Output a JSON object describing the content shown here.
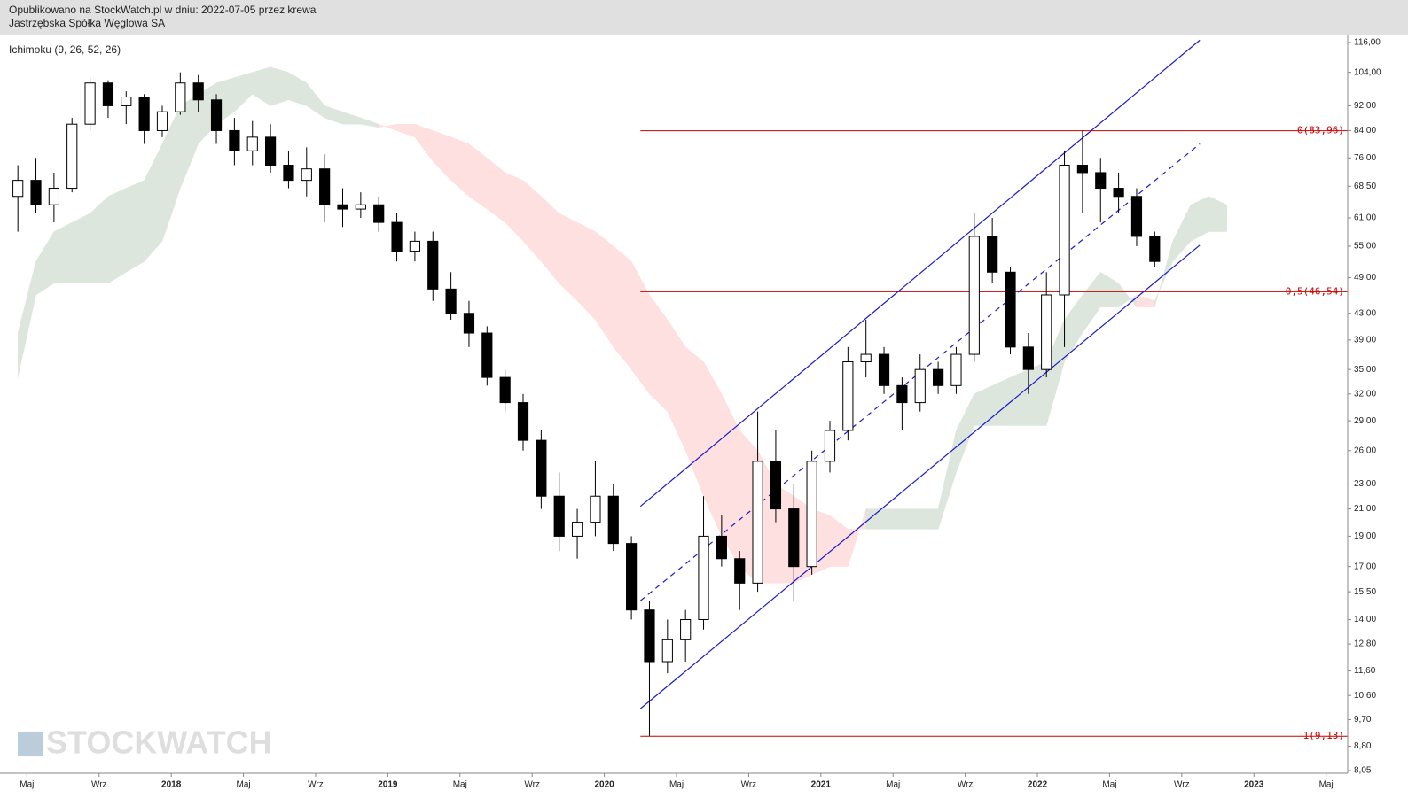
{
  "header": {
    "published": "Opublikowano na StockWatch.pl w dniu: 2022-07-05 przez krewa",
    "instrument": "Jastrzębska Spółka Węglowa SA"
  },
  "indicator_label": "Ichimoku (9, 26, 52, 26)",
  "watermark": "STOCKWATCH",
  "chart_data": {
    "type": "candlestick",
    "log_scale": true,
    "x": [
      "2017-04",
      "2017-05",
      "2017-06",
      "2017-07",
      "2017-08",
      "2017-09",
      "2017-10",
      "2017-11",
      "2017-12",
      "2018-01",
      "2018-02",
      "2018-03",
      "2018-04",
      "2018-05",
      "2018-06",
      "2018-07",
      "2018-08",
      "2018-09",
      "2018-10",
      "2018-11",
      "2018-12",
      "2019-01",
      "2019-02",
      "2019-03",
      "2019-04",
      "2019-05",
      "2019-06",
      "2019-07",
      "2019-08",
      "2019-09",
      "2019-10",
      "2019-11",
      "2019-12",
      "2020-01",
      "2020-02",
      "2020-03",
      "2020-04",
      "2020-05",
      "2020-06",
      "2020-07",
      "2020-08",
      "2020-09",
      "2020-10",
      "2020-11",
      "2020-12",
      "2021-01",
      "2021-02",
      "2021-03",
      "2021-04",
      "2021-05",
      "2021-06",
      "2021-07",
      "2021-08",
      "2021-09",
      "2021-10",
      "2021-11",
      "2021-12",
      "2022-01",
      "2022-02",
      "2022-03",
      "2022-04",
      "2022-05",
      "2022-06",
      "2022-07"
    ],
    "open": [
      66,
      70,
      64,
      68,
      86,
      100,
      92,
      95,
      84,
      90,
      100,
      94,
      84,
      78,
      82,
      74,
      70,
      73,
      64,
      63,
      64,
      60,
      54,
      56,
      47,
      43,
      40,
      34,
      31,
      27,
      22,
      19,
      20,
      22,
      18.5,
      14.5,
      12,
      13,
      14,
      19,
      17.5,
      16,
      25,
      21,
      17,
      25,
      28,
      36,
      37,
      33,
      31,
      35,
      33,
      37,
      57,
      50,
      38,
      35,
      46,
      74,
      72,
      68,
      66,
      57
    ],
    "high": [
      74,
      76,
      72,
      88,
      102,
      101,
      97,
      96,
      92,
      104,
      103,
      96,
      88,
      87,
      86,
      78,
      79,
      77,
      68,
      67,
      66,
      62,
      58,
      58,
      50,
      45,
      41,
      35,
      32,
      28,
      24,
      21,
      25,
      23,
      19,
      15,
      14,
      14.5,
      22,
      20.5,
      18,
      30,
      28,
      23,
      26,
      29,
      38,
      42,
      38,
      34,
      37,
      36,
      38,
      62,
      61,
      51,
      40,
      50,
      78,
      84,
      76,
      72,
      68,
      58
    ],
    "low": [
      58,
      62,
      60,
      67,
      84,
      88,
      86,
      80,
      82,
      89,
      90,
      80,
      74,
      74,
      72,
      68,
      66,
      60,
      59,
      61,
      58,
      52,
      52,
      45,
      42,
      38,
      33,
      30,
      26,
      21,
      18,
      17.5,
      19,
      18,
      14,
      9.13,
      11.5,
      12,
      13.5,
      17,
      14.5,
      15.5,
      20,
      15,
      16.5,
      24,
      27,
      34,
      32,
      28,
      30,
      32,
      32,
      36,
      48,
      37,
      32,
      34,
      38,
      62,
      60,
      62,
      55,
      51
    ],
    "close": [
      70,
      64,
      68,
      86,
      100,
      92,
      95,
      84,
      90,
      100,
      94,
      84,
      78,
      82,
      74,
      70,
      73,
      64,
      63,
      64,
      60,
      54,
      56,
      47,
      43,
      40,
      34,
      31,
      27,
      22,
      19,
      20,
      22,
      18.5,
      14.5,
      12,
      13,
      14,
      19,
      17.5,
      16,
      25,
      21,
      17,
      25,
      28,
      36,
      37,
      33,
      31,
      35,
      33,
      37,
      57,
      50,
      38,
      35,
      46,
      74,
      72,
      68,
      66,
      57,
      52
    ],
    "up_color": "#ffffff",
    "down_color": "#000000",
    "outline_color": "#000000",
    "cloud": {
      "x": [
        "2017-04",
        "2017-05",
        "2017-06",
        "2017-07",
        "2017-08",
        "2017-09",
        "2017-10",
        "2017-11",
        "2017-12",
        "2018-01",
        "2018-02",
        "2018-03",
        "2018-04",
        "2018-05",
        "2018-06",
        "2018-07",
        "2018-08",
        "2018-09",
        "2018-10",
        "2018-11",
        "2018-12",
        "2019-01",
        "2019-02",
        "2019-03",
        "2019-04",
        "2019-05",
        "2019-06",
        "2019-07",
        "2019-08",
        "2019-09",
        "2019-10",
        "2019-11",
        "2019-12",
        "2020-01",
        "2020-02",
        "2020-03",
        "2020-04",
        "2020-05",
        "2020-06",
        "2020-07",
        "2020-08",
        "2020-09",
        "2020-10",
        "2020-11",
        "2020-12",
        "2021-01",
        "2021-02",
        "2021-03",
        "2021-04",
        "2021-05",
        "2021-06",
        "2021-07",
        "2021-08",
        "2021-09",
        "2021-10",
        "2021-11",
        "2021-12",
        "2022-01",
        "2022-02",
        "2022-03",
        "2022-04",
        "2022-05",
        "2022-06",
        "2022-07",
        "2022-08",
        "2022-09",
        "2022-10",
        "2022-11"
      ],
      "span_a": [
        40,
        52,
        58,
        60,
        62,
        66,
        68,
        70,
        80,
        92,
        96,
        100,
        102,
        104,
        106,
        104,
        100,
        92,
        90,
        88,
        86,
        84,
        82,
        75,
        70,
        66,
        63,
        60,
        56,
        52,
        48,
        45,
        42,
        38,
        35,
        32,
        30,
        26,
        22,
        19,
        17,
        16,
        16,
        16,
        16.5,
        17,
        17,
        21,
        21,
        21,
        21,
        21,
        28,
        32,
        33,
        34,
        35,
        36,
        42,
        46,
        50,
        48,
        44,
        44,
        56,
        64,
        66,
        64
      ],
      "span_b": [
        34,
        46,
        48,
        48,
        48,
        48,
        50,
        52,
        56,
        68,
        80,
        86,
        90,
        96,
        92,
        94,
        92,
        88,
        86,
        86,
        85,
        86,
        86,
        84,
        82,
        80,
        76,
        72,
        70,
        66,
        62,
        60,
        58,
        55,
        52,
        46,
        42,
        38,
        36,
        32,
        28,
        26,
        23,
        22,
        21,
        20.5,
        19.5,
        19.5,
        19.5,
        19.5,
        19.5,
        19.5,
        24,
        28.5,
        28.5,
        28.5,
        28.5,
        28.5,
        36,
        40,
        44,
        44,
        46,
        45,
        52,
        56,
        58,
        58
      ],
      "up_color": "#dde6dd",
      "down_color": "#ffe0e0"
    },
    "channel": [
      {
        "style": "solid",
        "color": "#1a1acc",
        "x": [
          "2020-03",
          "2022-10"
        ],
        "values": [
          21.2,
          117
        ]
      },
      {
        "style": "dashed",
        "color": "#1a1acc",
        "x": [
          "2020-03",
          "2022-10"
        ],
        "values": [
          15,
          80
        ]
      },
      {
        "style": "solid",
        "color": "#1a1acc",
        "x": [
          "2020-03",
          "2022-10"
        ],
        "values": [
          10.1,
          55.2
        ]
      }
    ],
    "fib_levels": {
      "start": "2020-03",
      "color": "#cc0000",
      "levels": [
        {
          "value": 83.96,
          "label": "0(83,96)"
        },
        {
          "value": 46.54,
          "label": "0,5(46,54)"
        },
        {
          "value": 9.13,
          "label": "1(9,13)"
        }
      ]
    },
    "xlim": [
      "2017-04",
      "2023-06"
    ],
    "xticks": [
      {
        "value": "2017-05",
        "label": "Maj"
      },
      {
        "value": "2017-09",
        "label": "Wrz"
      },
      {
        "value": "2018-01",
        "label": "2018"
      },
      {
        "value": "2018-05",
        "label": "Maj"
      },
      {
        "value": "2018-09",
        "label": "Wrz"
      },
      {
        "value": "2019-01",
        "label": "2019"
      },
      {
        "value": "2019-05",
        "label": "Maj"
      },
      {
        "value": "2019-09",
        "label": "Wrz"
      },
      {
        "value": "2020-01",
        "label": "2020"
      },
      {
        "value": "2020-05",
        "label": "Maj"
      },
      {
        "value": "2020-09",
        "label": "Wrz"
      },
      {
        "value": "2021-01",
        "label": "2021"
      },
      {
        "value": "2021-05",
        "label": "Maj"
      },
      {
        "value": "2021-09",
        "label": "Wrz"
      },
      {
        "value": "2022-01",
        "label": "2022"
      },
      {
        "value": "2022-05",
        "label": "Maj"
      },
      {
        "value": "2022-09",
        "label": "Wrz"
      },
      {
        "value": "2023-01",
        "label": "2023"
      },
      {
        "value": "2023-05",
        "label": "Maj"
      }
    ],
    "ylim": [
      8.05,
      116
    ],
    "yticks": [
      {
        "value": 8.05,
        "label": "8,05"
      },
      {
        "value": 8.8,
        "label": "8,80"
      },
      {
        "value": 9.7,
        "label": "9,70"
      },
      {
        "value": 10.6,
        "label": "10,60"
      },
      {
        "value": 11.6,
        "label": "11,60"
      },
      {
        "value": 12.8,
        "label": "12,80"
      },
      {
        "value": 14,
        "label": "14,00"
      },
      {
        "value": 15.5,
        "label": "15,50"
      },
      {
        "value": 17,
        "label": "17,00"
      },
      {
        "value": 19,
        "label": "19,00"
      },
      {
        "value": 21,
        "label": "21,00"
      },
      {
        "value": 23,
        "label": "23,00"
      },
      {
        "value": 26,
        "label": "26,00"
      },
      {
        "value": 29,
        "label": "29,00"
      },
      {
        "value": 32,
        "label": "32,00"
      },
      {
        "value": 35,
        "label": "35,00"
      },
      {
        "value": 39,
        "label": "39,00"
      },
      {
        "value": 43,
        "label": "43,00"
      },
      {
        "value": 49,
        "label": "49,00"
      },
      {
        "value": 55,
        "label": "55,00"
      },
      {
        "value": 61,
        "label": "61,00"
      },
      {
        "value": 68.5,
        "label": "68,50"
      },
      {
        "value": 76,
        "label": "76,00"
      },
      {
        "value": 84,
        "label": "84,00"
      },
      {
        "value": 92,
        "label": "92,00"
      },
      {
        "value": 104,
        "label": "104,00"
      },
      {
        "value": 116,
        "label": "116,00"
      }
    ]
  }
}
